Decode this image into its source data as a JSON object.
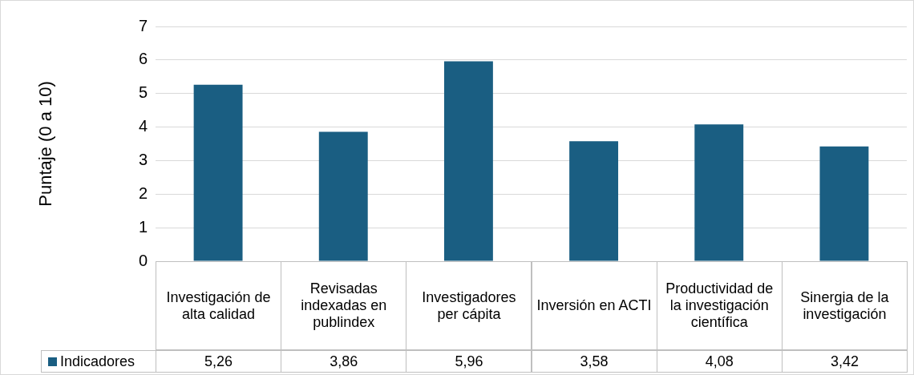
{
  "chart_data": {
    "type": "bar",
    "ylabel": "Puntaje (0 a 10)",
    "categories": [
      "Investigación de alta calidad",
      "Revisadas indexadas en publindex",
      "Investigadores per cápita",
      "Inversión en ACTI",
      "Productividad de la investigación científica",
      "Sinergia de la investigación"
    ],
    "series": [
      {
        "name": "Indicadores",
        "color": "#1a5e82",
        "values": [
          5.26,
          3.86,
          5.96,
          3.58,
          4.08,
          3.42
        ],
        "value_labels": [
          "5,26",
          "3,86",
          "5,96",
          "3,58",
          "4,08",
          "3,42"
        ]
      }
    ],
    "ylim": [
      0,
      7
    ],
    "yticks": [
      0,
      1,
      2,
      3,
      4,
      5,
      6,
      7
    ],
    "grid": "y",
    "legend": "bottom"
  }
}
